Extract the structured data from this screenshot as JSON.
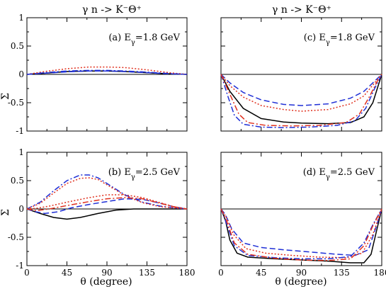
{
  "figure": {
    "left_title": "γ n -> K⁻Θ⁺",
    "right_title": "γ n -> K⁻Θ⁺",
    "ylabel": "Σ",
    "xlabel": "θ  (degree)"
  },
  "chart_data": [
    {
      "id": "a",
      "type": "line",
      "annotation": "(a) E",
      "annotation_sub": "γ",
      "annotation_rest": "=1.8 GeV",
      "xlim": [
        0,
        180
      ],
      "ylim": [
        -1,
        1
      ],
      "xticks": [],
      "yticks": [
        "-1",
        "-0.5",
        "0",
        "0.5",
        "1"
      ],
      "grid": false,
      "series": [
        {
          "style": "solid",
          "color": "#000000",
          "points": [
            [
              0,
              0
            ],
            [
              20,
              0.02
            ],
            [
              45,
              0.05
            ],
            [
              70,
              0.06
            ],
            [
              90,
              0.06
            ],
            [
              110,
              0.05
            ],
            [
              135,
              0.03
            ],
            [
              160,
              0.01
            ],
            [
              180,
              0
            ]
          ]
        },
        {
          "style": "dashed",
          "color": "#1f2fd6",
          "points": [
            [
              0,
              0
            ],
            [
              20,
              0.02
            ],
            [
              45,
              0.045
            ],
            [
              70,
              0.06
            ],
            [
              90,
              0.06
            ],
            [
              110,
              0.05
            ],
            [
              135,
              0.03
            ],
            [
              160,
              0.01
            ],
            [
              180,
              0
            ]
          ]
        },
        {
          "style": "dotted",
          "color": "#e0301e",
          "points": [
            [
              0,
              0
            ],
            [
              20,
              0.05
            ],
            [
              45,
              0.1
            ],
            [
              70,
              0.13
            ],
            [
              90,
              0.13
            ],
            [
              110,
              0.12
            ],
            [
              135,
              0.08
            ],
            [
              160,
              0.03
            ],
            [
              180,
              0
            ]
          ]
        },
        {
          "style": "dashdot",
          "color": "#1f2fd6",
          "points": [
            [
              0,
              0
            ],
            [
              20,
              0.03
            ],
            [
              45,
              0.06
            ],
            [
              70,
              0.07
            ],
            [
              90,
              0.07
            ],
            [
              110,
              0.06
            ],
            [
              135,
              0.04
            ],
            [
              160,
              0.015
            ],
            [
              180,
              0
            ]
          ]
        }
      ]
    },
    {
      "id": "c",
      "type": "line",
      "annotation": "(c) E",
      "annotation_sub": "γ",
      "annotation_rest": "=1.8 GeV",
      "xlim": [
        0,
        180
      ],
      "ylim": [
        -1,
        1
      ],
      "xticks": [],
      "yticks": [],
      "grid": false,
      "series": [
        {
          "style": "solid",
          "color": "#000000",
          "points": [
            [
              0,
              0
            ],
            [
              10,
              -0.3
            ],
            [
              25,
              -0.6
            ],
            [
              45,
              -0.78
            ],
            [
              70,
              -0.84
            ],
            [
              90,
              -0.86
            ],
            [
              120,
              -0.87
            ],
            [
              145,
              -0.85
            ],
            [
              160,
              -0.75
            ],
            [
              170,
              -0.5
            ],
            [
              180,
              0
            ]
          ]
        },
        {
          "style": "dashed",
          "color": "#1f2fd6",
          "points": [
            [
              0,
              0
            ],
            [
              10,
              -0.15
            ],
            [
              25,
              -0.32
            ],
            [
              45,
              -0.45
            ],
            [
              70,
              -0.53
            ],
            [
              90,
              -0.55
            ],
            [
              120,
              -0.52
            ],
            [
              145,
              -0.42
            ],
            [
              160,
              -0.3
            ],
            [
              172,
              -0.12
            ],
            [
              180,
              0
            ]
          ]
        },
        {
          "style": "dotted",
          "color": "#e0301e",
          "points": [
            [
              0,
              0
            ],
            [
              10,
              -0.2
            ],
            [
              25,
              -0.4
            ],
            [
              45,
              -0.55
            ],
            [
              70,
              -0.62
            ],
            [
              90,
              -0.65
            ],
            [
              120,
              -0.62
            ],
            [
              145,
              -0.52
            ],
            [
              160,
              -0.38
            ],
            [
              172,
              -0.15
            ],
            [
              180,
              0
            ]
          ]
        },
        {
          "style": "dashdot",
          "color": "#1f2fd6",
          "points": [
            [
              0,
              0
            ],
            [
              8,
              -0.4
            ],
            [
              15,
              -0.72
            ],
            [
              25,
              -0.88
            ],
            [
              45,
              -0.93
            ],
            [
              70,
              -0.94
            ],
            [
              100,
              -0.93
            ],
            [
              130,
              -0.9
            ],
            [
              150,
              -0.82
            ],
            [
              162,
              -0.6
            ],
            [
              172,
              -0.25
            ],
            [
              180,
              0
            ]
          ]
        },
        {
          "style": "dashdot",
          "color": "#e0301e",
          "points": [
            [
              0,
              0
            ],
            [
              10,
              -0.35
            ],
            [
              20,
              -0.7
            ],
            [
              30,
              -0.85
            ],
            [
              50,
              -0.9
            ],
            [
              80,
              -0.91
            ],
            [
              110,
              -0.9
            ],
            [
              140,
              -0.85
            ],
            [
              155,
              -0.7
            ],
            [
              166,
              -0.4
            ],
            [
              175,
              -0.12
            ],
            [
              180,
              0
            ]
          ]
        }
      ]
    },
    {
      "id": "b",
      "type": "line",
      "annotation": "(b) E",
      "annotation_sub": "γ",
      "annotation_rest": "=2.5 GeV",
      "xlim": [
        0,
        180
      ],
      "ylim": [
        -1,
        1
      ],
      "xticks": [
        "0",
        "45",
        "90",
        "135",
        "180"
      ],
      "yticks": [
        "-1",
        "-0.5",
        "0",
        "0.5",
        "1"
      ],
      "grid": false,
      "series": [
        {
          "style": "solid",
          "color": "#000000",
          "points": [
            [
              0,
              0
            ],
            [
              15,
              -0.08
            ],
            [
              30,
              -0.15
            ],
            [
              45,
              -0.18
            ],
            [
              60,
              -0.15
            ],
            [
              80,
              -0.08
            ],
            [
              100,
              -0.02
            ],
            [
              120,
              0
            ],
            [
              150,
              0
            ],
            [
              180,
              0
            ]
          ]
        },
        {
          "style": "dashed",
          "color": "#1f2fd6",
          "points": [
            [
              0,
              0
            ],
            [
              10,
              -0.05
            ],
            [
              20,
              -0.08
            ],
            [
              35,
              -0.05
            ],
            [
              50,
              0.02
            ],
            [
              70,
              0.08
            ],
            [
              90,
              0.13
            ],
            [
              110,
              0.18
            ],
            [
              130,
              0.17
            ],
            [
              150,
              0.1
            ],
            [
              165,
              0.04
            ],
            [
              180,
              0
            ]
          ]
        },
        {
          "style": "dotted",
          "color": "#e0301e",
          "points": [
            [
              0,
              0
            ],
            [
              10,
              0.01
            ],
            [
              25,
              0.05
            ],
            [
              45,
              0.12
            ],
            [
              70,
              0.2
            ],
            [
              90,
              0.25
            ],
            [
              110,
              0.25
            ],
            [
              130,
              0.2
            ],
            [
              150,
              0.11
            ],
            [
              165,
              0.04
            ],
            [
              180,
              0
            ]
          ]
        },
        {
          "style": "dashdot",
          "color": "#1f2fd6",
          "points": [
            [
              0,
              0
            ],
            [
              15,
              0.12
            ],
            [
              30,
              0.32
            ],
            [
              45,
              0.5
            ],
            [
              60,
              0.6
            ],
            [
              70,
              0.6
            ],
            [
              80,
              0.55
            ],
            [
              95,
              0.4
            ],
            [
              110,
              0.25
            ],
            [
              130,
              0.12
            ],
            [
              150,
              0.05
            ],
            [
              165,
              0.02
            ],
            [
              180,
              0
            ]
          ]
        },
        {
          "style": "dotted",
          "color": "#e0301e",
          "points": [
            [
              0,
              0
            ],
            [
              15,
              0.1
            ],
            [
              30,
              0.28
            ],
            [
              45,
              0.45
            ],
            [
              60,
              0.54
            ],
            [
              70,
              0.55
            ],
            [
              80,
              0.52
            ],
            [
              95,
              0.38
            ],
            [
              110,
              0.24
            ],
            [
              130,
              0.11
            ],
            [
              150,
              0.04
            ],
            [
              180,
              0
            ]
          ]
        },
        {
          "style": "dashdot",
          "color": "#e0301e",
          "points": [
            [
              0,
              0
            ],
            [
              10,
              -0.03
            ],
            [
              25,
              0.0
            ],
            [
              45,
              0.06
            ],
            [
              70,
              0.13
            ],
            [
              90,
              0.18
            ],
            [
              110,
              0.2
            ],
            [
              130,
              0.18
            ],
            [
              150,
              0.1
            ],
            [
              165,
              0.04
            ],
            [
              180,
              0
            ]
          ]
        }
      ]
    },
    {
      "id": "d",
      "type": "line",
      "annotation": "(d) E",
      "annotation_sub": "γ",
      "annotation_rest": "=2.5 GeV",
      "xlim": [
        0,
        180
      ],
      "ylim": [
        -1,
        1
      ],
      "xticks": [
        "0",
        "45",
        "90",
        "135",
        "180"
      ],
      "yticks": [],
      "grid": false,
      "series": [
        {
          "style": "solid",
          "color": "#000000",
          "points": [
            [
              0,
              0
            ],
            [
              5,
              -0.2
            ],
            [
              10,
              -0.55
            ],
            [
              18,
              -0.78
            ],
            [
              30,
              -0.85
            ],
            [
              60,
              -0.88
            ],
            [
              90,
              -0.9
            ],
            [
              120,
              -0.92
            ],
            [
              145,
              -0.95
            ],
            [
              160,
              -0.95
            ],
            [
              168,
              -0.8
            ],
            [
              174,
              -0.4
            ],
            [
              180,
              0
            ]
          ]
        },
        {
          "style": "dashed",
          "color": "#1f2fd6",
          "points": [
            [
              0,
              0
            ],
            [
              5,
              -0.1
            ],
            [
              12,
              -0.35
            ],
            [
              25,
              -0.6
            ],
            [
              45,
              -0.68
            ],
            [
              70,
              -0.72
            ],
            [
              100,
              -0.76
            ],
            [
              130,
              -0.8
            ],
            [
              150,
              -0.82
            ],
            [
              165,
              -0.72
            ],
            [
              173,
              -0.35
            ],
            [
              180,
              0
            ]
          ]
        },
        {
          "style": "dotted",
          "color": "#e0301e",
          "points": [
            [
              0,
              0
            ],
            [
              6,
              -0.15
            ],
            [
              14,
              -0.45
            ],
            [
              28,
              -0.7
            ],
            [
              50,
              -0.78
            ],
            [
              80,
              -0.82
            ],
            [
              110,
              -0.85
            ],
            [
              140,
              -0.86
            ],
            [
              158,
              -0.78
            ],
            [
              170,
              -0.45
            ],
            [
              180,
              0
            ]
          ]
        },
        {
          "style": "dashdot",
          "color": "#1f2fd6",
          "points": [
            [
              0,
              0
            ],
            [
              6,
              -0.25
            ],
            [
              15,
              -0.65
            ],
            [
              30,
              -0.82
            ],
            [
              60,
              -0.86
            ],
            [
              90,
              -0.88
            ],
            [
              120,
              -0.88
            ],
            [
              145,
              -0.84
            ],
            [
              160,
              -0.6
            ],
            [
              170,
              -0.28
            ],
            [
              180,
              0
            ]
          ]
        },
        {
          "style": "dashdot",
          "color": "#e0301e",
          "points": [
            [
              0,
              0
            ],
            [
              6,
              -0.2
            ],
            [
              15,
              -0.6
            ],
            [
              30,
              -0.8
            ],
            [
              60,
              -0.87
            ],
            [
              90,
              -0.9
            ],
            [
              120,
              -0.91
            ],
            [
              145,
              -0.88
            ],
            [
              160,
              -0.65
            ],
            [
              170,
              -0.3
            ],
            [
              180,
              0
            ]
          ]
        }
      ]
    }
  ]
}
